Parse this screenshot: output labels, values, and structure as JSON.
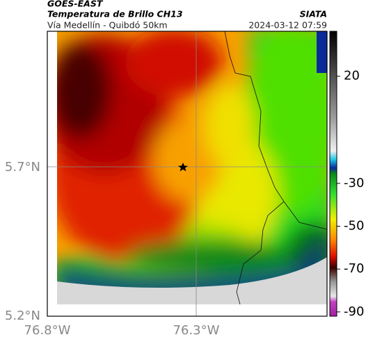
{
  "header": {
    "source": "GOES-EAST",
    "product": "Temperatura de Brillo CH13",
    "route": "Vía Medellín - Quibdó 50km",
    "agency": "SIATA",
    "timestamp": "2024-03-12 07:59"
  },
  "axes": {
    "lat_labels": [
      "5.7°N",
      "5.2°N"
    ],
    "lon_labels": [
      "76.8°W",
      "76.3°W"
    ]
  },
  "colorbar": {
    "lim": [
      41,
      -92
    ],
    "ticks": [
      20,
      -30,
      -50,
      -70,
      -90
    ]
  }
}
